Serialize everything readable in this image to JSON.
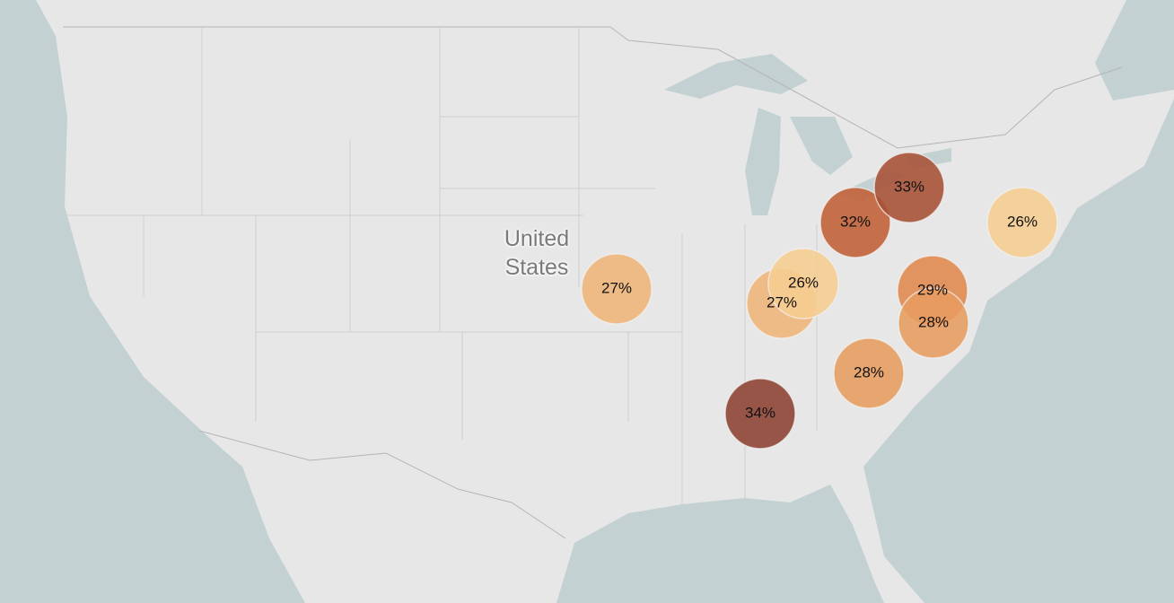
{
  "map": {
    "country_label": "United States",
    "markers": [
      {
        "value": 27,
        "label": "27%"
      },
      {
        "value": 27,
        "label": "27%"
      },
      {
        "value": 26,
        "label": "26%"
      },
      {
        "value": 32,
        "label": "32%"
      },
      {
        "value": 33,
        "label": "33%"
      },
      {
        "value": 26,
        "label": "26%"
      },
      {
        "value": 29,
        "label": "29%"
      },
      {
        "value": 28,
        "label": "28%"
      },
      {
        "value": 28,
        "label": "28%"
      },
      {
        "value": 34,
        "label": "34%"
      }
    ]
  }
}
